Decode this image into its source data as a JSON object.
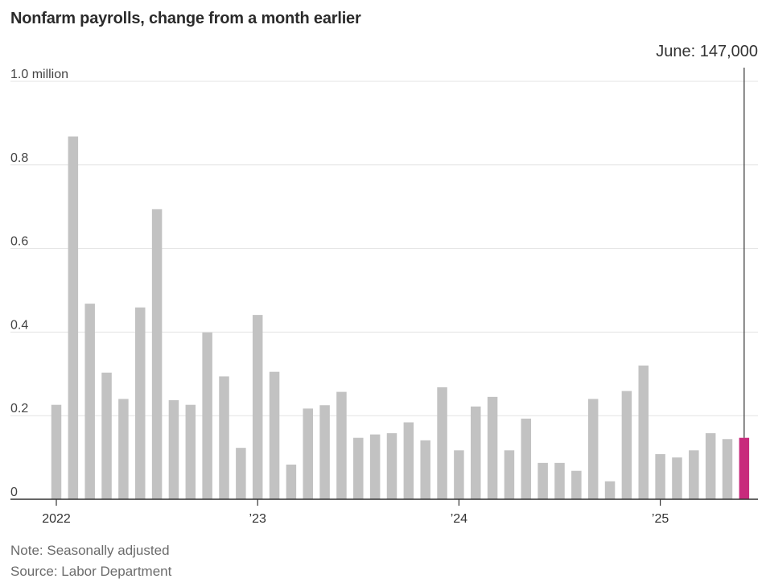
{
  "chart_data": {
    "type": "bar",
    "title": "Nonfarm payrolls, change from a month earlier",
    "ylabel": "",
    "xlabel": "",
    "ylim": [
      0,
      1.0
    ],
    "yticks": [
      {
        "value": 1.0,
        "label": "1.0 million"
      },
      {
        "value": 0.8,
        "label": "0.8"
      },
      {
        "value": 0.6,
        "label": "0.6"
      },
      {
        "value": 0.4,
        "label": "0.4"
      },
      {
        "value": 0.2,
        "label": "0.2"
      },
      {
        "value": 0,
        "label": "0"
      }
    ],
    "xticks": [
      {
        "index": 0,
        "label": "2022"
      },
      {
        "index": 12,
        "label": "’23"
      },
      {
        "index": 24,
        "label": "’24"
      },
      {
        "index": 36,
        "label": "’25"
      }
    ],
    "grid": true,
    "series": [
      {
        "values": [
          0.226,
          0.868,
          0.468,
          0.303,
          0.24,
          0.459,
          0.694,
          0.237,
          0.226,
          0.399,
          0.294,
          0.123,
          0.441,
          0.305,
          0.083,
          0.217,
          0.225,
          0.257,
          0.147,
          0.155,
          0.158,
          0.184,
          0.141,
          0.268,
          0.117,
          0.222,
          0.245,
          0.117,
          0.193,
          0.087,
          0.087,
          0.068,
          0.24,
          0.043,
          0.259,
          0.32,
          0.108,
          0.1,
          0.117,
          0.158,
          0.144,
          0.147
        ]
      }
    ],
    "bar_color": "#c2c2c2",
    "highlight_color": "#c82a7c",
    "highlight_index": 41,
    "annotation": {
      "index": 41,
      "label": "June: 147,000"
    }
  },
  "footer": {
    "note": "Note: Seasonally adjusted",
    "source": "Source: Labor Department"
  }
}
